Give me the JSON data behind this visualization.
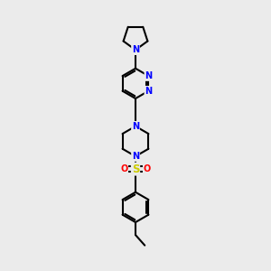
{
  "background_color": "#ebebeb",
  "bond_color": "#000000",
  "bond_width": 1.5,
  "atom_colors": {
    "N": "#0000ff",
    "S": "#cccc00",
    "O": "#ff0000",
    "C": "#000000"
  },
  "font_size": 7.0
}
